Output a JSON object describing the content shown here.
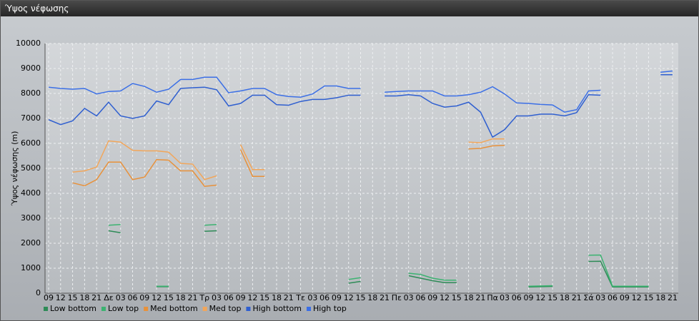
{
  "chart_data": {
    "type": "line",
    "title": "Ύψος νέφωσης",
    "y_label": "Ύψος νέφωσης (m)",
    "categories": [
      "09",
      "12",
      "15",
      "18",
      "21",
      "Δε",
      "03",
      "06",
      "09",
      "12",
      "15",
      "18",
      "21",
      "Τρ",
      "03",
      "06",
      "09",
      "12",
      "15",
      "18",
      "21",
      "Τε",
      "03",
      "06",
      "09",
      "12",
      "15",
      "18",
      "21",
      "Πε",
      "03",
      "06",
      "09",
      "12",
      "15",
      "18",
      "21",
      "Πα",
      "03",
      "06",
      "09",
      "12",
      "15",
      "18",
      "21",
      "Σά",
      "03",
      "06",
      "09",
      "12",
      "15",
      "18",
      "21"
    ],
    "ylim": [
      0,
      10000
    ],
    "yticks": [
      0,
      1000,
      2000,
      3000,
      4000,
      5000,
      6000,
      7000,
      8000,
      9000,
      10000
    ],
    "grid": true,
    "series": [
      {
        "name": "Low bottom",
        "color": "#2e8b57",
        "values": [
          null,
          null,
          null,
          null,
          null,
          2500,
          2420,
          null,
          null,
          260,
          260,
          null,
          null,
          2480,
          2500,
          null,
          null,
          null,
          null,
          null,
          null,
          null,
          null,
          null,
          null,
          400,
          470,
          null,
          null,
          null,
          700,
          600,
          500,
          420,
          420,
          null,
          null,
          null,
          null,
          null,
          250,
          260,
          270,
          null,
          null,
          1270,
          1280,
          250,
          250,
          250,
          250,
          null,
          null
        ]
      },
      {
        "name": "Low top",
        "color": "#3cb371",
        "values": [
          null,
          null,
          null,
          null,
          null,
          2720,
          2750,
          null,
          null,
          280,
          280,
          null,
          null,
          2720,
          2750,
          null,
          null,
          null,
          null,
          null,
          null,
          null,
          null,
          null,
          null,
          550,
          620,
          null,
          null,
          null,
          800,
          750,
          600,
          520,
          520,
          null,
          null,
          null,
          null,
          null,
          280,
          290,
          300,
          null,
          null,
          1520,
          1530,
          280,
          280,
          280,
          280,
          null,
          null
        ]
      },
      {
        "name": "Med bottom",
        "color": "#e8913a",
        "values": [
          null,
          null,
          4420,
          4300,
          4550,
          5250,
          5250,
          4550,
          4650,
          5350,
          5330,
          4900,
          4900,
          4280,
          4330,
          null,
          5750,
          4680,
          4680,
          null,
          null,
          null,
          null,
          null,
          null,
          null,
          null,
          null,
          null,
          null,
          null,
          null,
          null,
          null,
          null,
          5780,
          5800,
          5900,
          5920,
          null,
          null,
          null,
          null,
          null,
          null,
          null,
          null,
          null,
          null,
          null,
          null,
          null,
          null
        ]
      },
      {
        "name": "Med top",
        "color": "#f2a65a",
        "values": [
          null,
          null,
          4850,
          4900,
          5050,
          6100,
          6050,
          5720,
          5700,
          5700,
          5650,
          5200,
          5170,
          4550,
          4700,
          null,
          5950,
          4950,
          4950,
          null,
          null,
          null,
          null,
          null,
          null,
          null,
          null,
          null,
          null,
          null,
          null,
          null,
          null,
          null,
          null,
          6050,
          6030,
          6180,
          6180,
          null,
          null,
          null,
          null,
          null,
          null,
          null,
          null,
          null,
          null,
          null,
          null,
          null,
          null
        ]
      },
      {
        "name": "High bottom",
        "color": "#2f5fd0",
        "values": [
          6950,
          6750,
          6900,
          7400,
          7100,
          7650,
          7100,
          7000,
          7100,
          7700,
          7550,
          8200,
          8230,
          8250,
          8150,
          7500,
          7600,
          7930,
          7930,
          7550,
          7530,
          7680,
          7760,
          7760,
          7830,
          7930,
          7930,
          null,
          7900,
          7900,
          7950,
          7900,
          7600,
          7450,
          7500,
          7650,
          7250,
          6250,
          6550,
          7100,
          7100,
          7170,
          7170,
          7100,
          7230,
          7950,
          7930,
          null,
          null,
          null,
          null,
          8750,
          8750
        ]
      },
      {
        "name": "High top",
        "color": "#3b6fe6",
        "values": [
          8250,
          8200,
          8170,
          8200,
          7980,
          8080,
          8100,
          8400,
          8280,
          8050,
          8170,
          8560,
          8560,
          8650,
          8650,
          8030,
          8100,
          8200,
          8200,
          7950,
          7880,
          7850,
          7980,
          8300,
          8300,
          8200,
          8200,
          null,
          8050,
          8080,
          8100,
          8100,
          8100,
          7900,
          7900,
          7950,
          8050,
          8270,
          7980,
          7620,
          7600,
          7560,
          7540,
          7250,
          7350,
          8100,
          8130,
          null,
          null,
          null,
          null,
          8850,
          8900
        ]
      }
    ]
  }
}
